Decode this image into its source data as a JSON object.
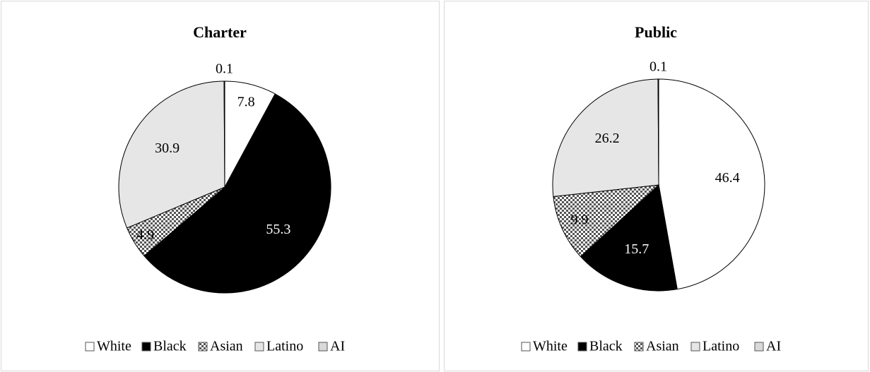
{
  "chart_data": [
    {
      "type": "pie",
      "title": "Charter",
      "categories": [
        "White",
        "Black",
        "Asian",
        "Latino",
        "AI"
      ],
      "values": [
        7.8,
        55.3,
        4.9,
        30.9,
        0.1
      ],
      "colors": [
        "#ffffff",
        "#000000",
        "#ffffff",
        "#e7e6e6",
        "#d9d9d9"
      ],
      "checkered": [
        false,
        false,
        true,
        false,
        false
      ],
      "legend": "bottom"
    },
    {
      "type": "pie",
      "title": "Public",
      "categories": [
        "White",
        "Black",
        "Asian",
        "Latino",
        "AI"
      ],
      "values": [
        46.4,
        15.7,
        9.9,
        26.2,
        0.1
      ],
      "colors": [
        "#ffffff",
        "#000000",
        "#ffffff",
        "#e7e6e6",
        "#d9d9d9"
      ],
      "checkered": [
        false,
        false,
        true,
        false,
        false
      ],
      "legend": "bottom"
    }
  ]
}
